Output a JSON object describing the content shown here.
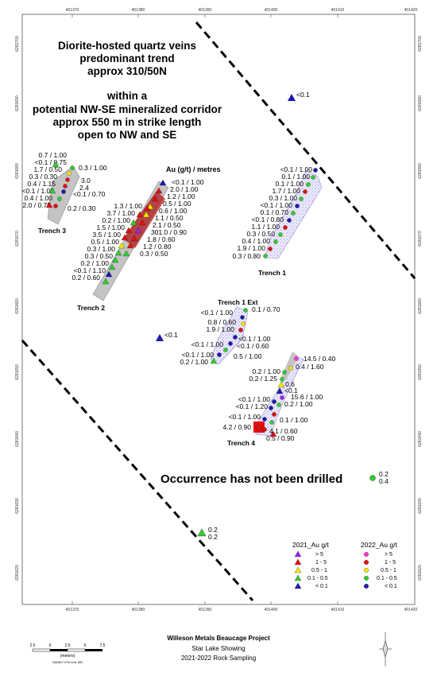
{
  "title_lines": [
    "Diorite-hosted quartz veins",
    "predominant trend",
    "approx 310/50N",
    "within a",
    "potential NW-SE mineralized corridor",
    "approx 550 m in strike length",
    "open to NW and SE"
  ],
  "legend_header": "Au (g/t) / metres",
  "trenches": {
    "t1": "Trench 1",
    "t1ext": "Trench 1 Ext",
    "t2": "Trench 2",
    "t3": "Trench 3",
    "t4": "Trench 4"
  },
  "note": "Occurrence has not been drilled",
  "x_ticks": [
    "401370",
    "401380",
    "401390",
    "401400",
    "401410",
    "401420"
  ],
  "y_ticks": [
    "6281700",
    "6281690",
    "6281680",
    "6281670",
    "6281660",
    "6281650",
    "6281640",
    "6281630",
    "6281620"
  ],
  "labels": {
    "t3": [
      "0.7 / 1.00",
      "<0.1 / 0.75",
      "1.7 / 0.50",
      "0.3 / 0.30",
      "0.4 / 1.15",
      "<0.1 / 1.05",
      "0.4 / 1.00",
      "2.0 / 0.75"
    ],
    "t3r": [
      "0.3 / 1.00",
      "3.0",
      "2.4",
      "<0.1 / 0.70",
      "0.2 / 0.30"
    ],
    "t2": [
      "1.3 / 1.00",
      "3.7 / 1.00",
      "0.2 / 1.00",
      "1.5 / 1.00",
      "3.5 / 1.00",
      "0.5 / 1.00",
      "0.3 / 1.00",
      "0.3 / 0.50",
      "0.2 / 1.00",
      "<0.1 / 1.10",
      "0.2 / 0.60"
    ],
    "t2r": [
      "<0.1 / 1.00",
      "2.0 / 1.00",
      "1.2 / 1.00",
      "0.5 / 1.00",
      "0.6 / 1.00",
      "1.1 / 0.50",
      "2.1 / 0.50",
      "301.0 / 0.90",
      "1.8 / 0.60",
      "1.2 / 0.80",
      "0.3 / 0.50"
    ],
    "t1": [
      "<0.1 / 1.00",
      "0.1 / 1.00",
      "0.1 / 1.00",
      "1.7 / 1.00",
      "0.3 / 1.00",
      "<0.1 / 1.00",
      "0.1 / 0.70",
      "<0.1 / 0.80",
      "1.1 / 1.00",
      "0.3 / 0.50",
      "0.4 / 1.00",
      "1.9 / 1.00",
      "0.3 / 0.80"
    ],
    "t1e": [
      "<0.1 / 1.00",
      "0.8 / 0.60",
      "1.9 / 1.00",
      "<0.1 / 1.00",
      "<0.1 / 1.00",
      "0.2 / 1.00"
    ],
    "t1er": [
      "0.1 / 0.70",
      "<0.1 / 1.00",
      "<0.1 / 0.60",
      "0.5 / 1.00"
    ],
    "t4": [
      "0.2 / 1.00",
      "0.2 / 1.25",
      "<0.1 / 1.00",
      "<0.1 / 1.20",
      "<0.1 / 1.00",
      "4.2 / 0.90"
    ],
    "t4r": [
      "14.5 / 0.40",
      "0.4 / 1.60",
      "0.6",
      "<0.1",
      "15.6 / 1.00",
      "0.2 / 1.00",
      "0.1 / 1.00",
      "4.1 / 0.60",
      "0.5 / 0.90"
    ],
    "isolated": [
      "<0.1",
      "<0.1",
      "0.2",
      "0.4",
      "0.2",
      "0.2"
    ]
  },
  "legend": {
    "title2021": "2021_Au g/t",
    "title2022": "2022_Au g/t",
    "classes": [
      "> 5",
      "1 - 5",
      "0.5 - 1",
      "0.1 - 0.5",
      "< 0.1"
    ],
    "colors": {
      "gt5": "#a020f0",
      "r1_5": "#e01010",
      "r05_1": "#f5e600",
      "r01_05": "#33cc33",
      "lt01": "#1a1ab0",
      "pink": "#ff33cc"
    }
  },
  "scale_bar": {
    "ticks": [
      "2.5",
      "0",
      "2.5",
      "5",
      "7.5"
    ],
    "unit": "(meters)",
    "stamp": "NAD83 / UTM zone 18N"
  },
  "footer": [
    "Willeson Metals Beaucage Project",
    "Star Lake Showing",
    "2021-2022 Rock Sampling"
  ]
}
